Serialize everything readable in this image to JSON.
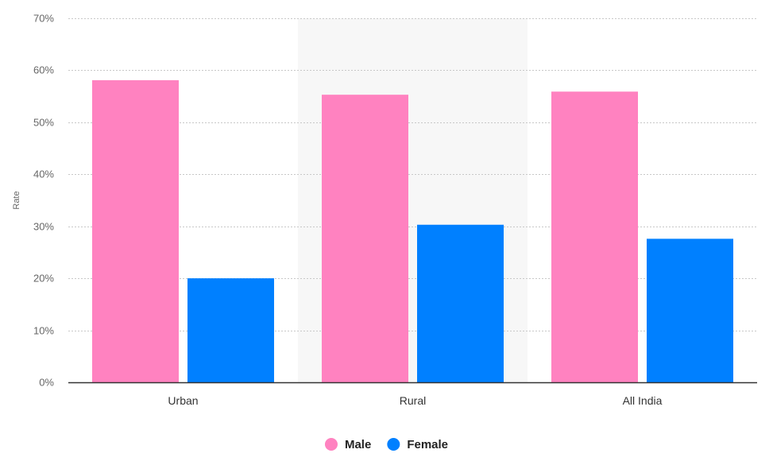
{
  "chart_data": {
    "type": "bar",
    "title": "",
    "xlabel": "",
    "ylabel": "Rate",
    "categories": [
      "Urban",
      "Rural",
      "All India"
    ],
    "series": [
      {
        "name": "Male",
        "color": "#ff82c0",
        "values": [
          58.1,
          55.3,
          55.9
        ]
      },
      {
        "name": "Female",
        "color": "#0080ff",
        "values": [
          20.0,
          30.3,
          27.6
        ]
      }
    ],
    "ylim": [
      0,
      70
    ],
    "yticks": [
      0,
      10,
      20,
      30,
      40,
      50,
      60,
      70
    ],
    "ytick_labels": [
      "0%",
      "10%",
      "20%",
      "30%",
      "40%",
      "50%",
      "60%",
      "70%"
    ],
    "grid": true,
    "legend": "bottom-center",
    "highlighted_category": "Rural",
    "highlight_color": "#f7f7f7"
  }
}
